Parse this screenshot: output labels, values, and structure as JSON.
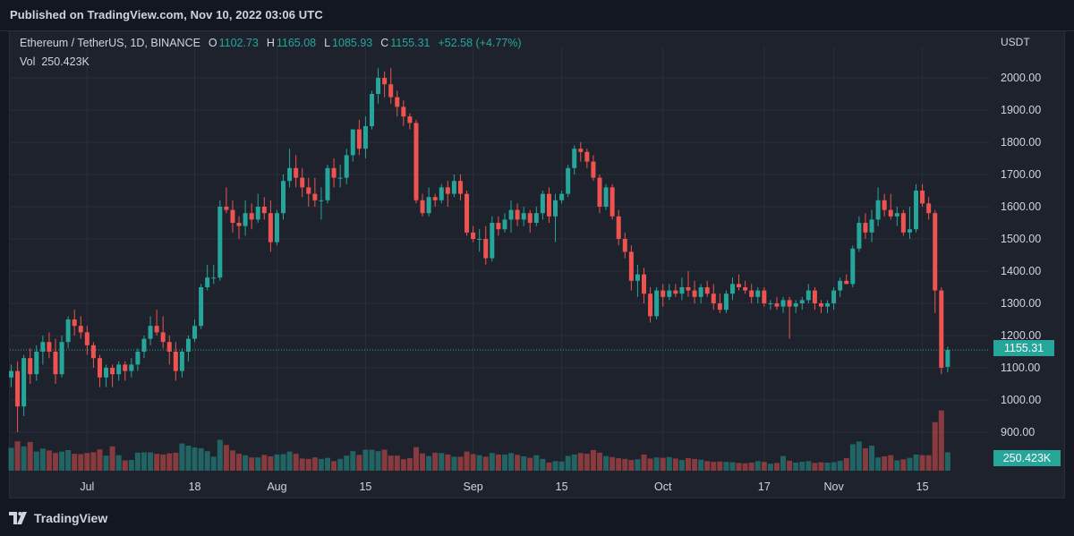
{
  "header": {
    "published": "Published on TradingView.com, Nov 10, 2022 03:06 UTC"
  },
  "legend": {
    "symbol": "Ethereum / TetherUS, 1D, BINANCE",
    "o_label": "O",
    "o_value": "1102.73",
    "h_label": "H",
    "h_value": "1165.08",
    "l_label": "L",
    "l_value": "1085.93",
    "c_label": "C",
    "c_value": "1155.31",
    "change": "+52.58 (+4.77%)",
    "vol_label": "Vol",
    "vol_value": "250.423K"
  },
  "currency": "USDT",
  "badges": {
    "last_price": "1155.31",
    "last_volume": "250.423K"
  },
  "footer": {
    "brand": "TradingView"
  },
  "colors": {
    "up": "#26a69a",
    "down": "#ef5350",
    "up_volume": "#26a69a",
    "down_volume": "#ef5350",
    "background": "#1e222d",
    "grid": "#2a2e39"
  },
  "chart_data": {
    "type": "candlestick",
    "title": "Ethereum / TetherUS, 1D, BINANCE",
    "ylim": [
      870,
      2100
    ],
    "y_ticks": [
      2000,
      1900,
      1800,
      1700,
      1600,
      1500,
      1400,
      1300,
      1200,
      1100,
      1000,
      900
    ],
    "y_tick_labels": [
      "2000.00",
      "1900.00",
      "1800.00",
      "1700.00",
      "1600.00",
      "1500.00",
      "1400.00",
      "1300.00",
      "1200.00",
      "1100.00",
      "1000.00",
      "900.00"
    ],
    "x_ticks": [
      {
        "day": 12,
        "label": "Jul"
      },
      {
        "day": 29,
        "label": "18"
      },
      {
        "day": 42,
        "label": "Aug"
      },
      {
        "day": 56,
        "label": "15"
      },
      {
        "day": 73,
        "label": "Sep"
      },
      {
        "day": 87,
        "label": "15"
      },
      {
        "day": 103,
        "label": "Oct"
      },
      {
        "day": 119,
        "label": "17"
      },
      {
        "day": 130,
        "label": "Nov"
      },
      {
        "day": 144,
        "label": "15"
      }
    ],
    "candles": [
      [
        1070,
        1110,
        1040,
        1090,
        310
      ],
      [
        1090,
        1120,
        900,
        980,
        400
      ],
      [
        980,
        1140,
        950,
        1130,
        330
      ],
      [
        1130,
        1160,
        1050,
        1080,
        390
      ],
      [
        1080,
        1170,
        1060,
        1150,
        260
      ],
      [
        1150,
        1200,
        1110,
        1180,
        300
      ],
      [
        1180,
        1210,
        1130,
        1150,
        275
      ],
      [
        1150,
        1190,
        1050,
        1080,
        240
      ],
      [
        1080,
        1200,
        1070,
        1180,
        260
      ],
      [
        1180,
        1260,
        1160,
        1250,
        280
      ],
      [
        1250,
        1280,
        1200,
        1230,
        230
      ],
      [
        1230,
        1260,
        1190,
        1210,
        225
      ],
      [
        1210,
        1230,
        1140,
        1170,
        240
      ],
      [
        1170,
        1180,
        1100,
        1130,
        250
      ],
      [
        1130,
        1140,
        1040,
        1070,
        290
      ],
      [
        1070,
        1110,
        1040,
        1100,
        205
      ],
      [
        1100,
        1110,
        1040,
        1080,
        330
      ],
      [
        1080,
        1120,
        1060,
        1110,
        210
      ],
      [
        1110,
        1120,
        1060,
        1090,
        140
      ],
      [
        1090,
        1130,
        1070,
        1110,
        145
      ],
      [
        1110,
        1160,
        1090,
        1150,
        245
      ],
      [
        1150,
        1200,
        1130,
        1190,
        250
      ],
      [
        1190,
        1260,
        1170,
        1230,
        250
      ],
      [
        1230,
        1280,
        1200,
        1210,
        230
      ],
      [
        1210,
        1260,
        1160,
        1180,
        220
      ],
      [
        1180,
        1200,
        1110,
        1150,
        235
      ],
      [
        1150,
        1180,
        1060,
        1090,
        245
      ],
      [
        1090,
        1160,
        1070,
        1150,
        370
      ],
      [
        1150,
        1200,
        1120,
        1190,
        340
      ],
      [
        1190,
        1250,
        1180,
        1230,
        315
      ],
      [
        1230,
        1360,
        1220,
        1350,
        305
      ],
      [
        1350,
        1420,
        1340,
        1380,
        265
      ],
      [
        1380,
        1420,
        1360,
        1380,
        190
      ],
      [
        1380,
        1620,
        1370,
        1600,
        420
      ],
      [
        1600,
        1660,
        1580,
        1590,
        350
      ],
      [
        1590,
        1620,
        1520,
        1550,
        275
      ],
      [
        1550,
        1570,
        1500,
        1540,
        230
      ],
      [
        1540,
        1620,
        1510,
        1580,
        210
      ],
      [
        1580,
        1610,
        1530,
        1560,
        180
      ],
      [
        1560,
        1640,
        1550,
        1600,
        180
      ],
      [
        1600,
        1630,
        1560,
        1580,
        215
      ],
      [
        1580,
        1620,
        1460,
        1490,
        195
      ],
      [
        1490,
        1590,
        1480,
        1580,
        220
      ],
      [
        1580,
        1700,
        1560,
        1680,
        225
      ],
      [
        1680,
        1780,
        1660,
        1720,
        260
      ],
      [
        1720,
        1760,
        1660,
        1690,
        230
      ],
      [
        1690,
        1720,
        1630,
        1660,
        165
      ],
      [
        1660,
        1690,
        1600,
        1640,
        160
      ],
      [
        1640,
        1690,
        1600,
        1620,
        180
      ],
      [
        1620,
        1660,
        1560,
        1620,
        160
      ],
      [
        1620,
        1730,
        1610,
        1720,
        175
      ],
      [
        1720,
        1750,
        1660,
        1690,
        130
      ],
      [
        1690,
        1730,
        1660,
        1690,
        160
      ],
      [
        1690,
        1780,
        1670,
        1760,
        205
      ],
      [
        1760,
        1840,
        1740,
        1840,
        265
      ],
      [
        1840,
        1870,
        1760,
        1780,
        215
      ],
      [
        1780,
        1880,
        1750,
        1850,
        285
      ],
      [
        1850,
        1960,
        1840,
        1950,
        285
      ],
      [
        1950,
        2030,
        1920,
        2000,
        265
      ],
      [
        2000,
        2020,
        1940,
        1980,
        285
      ],
      [
        1980,
        2030,
        1920,
        1940,
        205
      ],
      [
        1940,
        1960,
        1880,
        1910,
        205
      ],
      [
        1910,
        1930,
        1850,
        1880,
        155
      ],
      [
        1880,
        1890,
        1840,
        1860,
        170
      ],
      [
        1860,
        1870,
        1610,
        1620,
        320
      ],
      [
        1620,
        1640,
        1570,
        1580,
        235
      ],
      [
        1580,
        1660,
        1570,
        1630,
        200
      ],
      [
        1630,
        1640,
        1600,
        1620,
        245
      ],
      [
        1620,
        1670,
        1610,
        1660,
        240
      ],
      [
        1660,
        1680,
        1600,
        1640,
        220
      ],
      [
        1640,
        1700,
        1630,
        1680,
        190
      ],
      [
        1680,
        1700,
        1620,
        1640,
        190
      ],
      [
        1640,
        1650,
        1510,
        1520,
        260
      ],
      [
        1520,
        1540,
        1490,
        1500,
        225
      ],
      [
        1500,
        1530,
        1460,
        1500,
        210
      ],
      [
        1500,
        1540,
        1420,
        1440,
        190
      ],
      [
        1440,
        1570,
        1430,
        1550,
        240
      ],
      [
        1550,
        1570,
        1510,
        1530,
        220
      ],
      [
        1530,
        1580,
        1520,
        1560,
        220
      ],
      [
        1560,
        1620,
        1520,
        1590,
        240
      ],
      [
        1590,
        1610,
        1540,
        1560,
        215
      ],
      [
        1560,
        1600,
        1540,
        1580,
        195
      ],
      [
        1580,
        1590,
        1520,
        1550,
        175
      ],
      [
        1550,
        1600,
        1540,
        1580,
        210
      ],
      [
        1580,
        1650,
        1560,
        1640,
        160
      ],
      [
        1640,
        1660,
        1550,
        1570,
        110
      ],
      [
        1570,
        1640,
        1490,
        1620,
        130
      ],
      [
        1620,
        1650,
        1610,
        1640,
        125
      ],
      [
        1640,
        1730,
        1630,
        1720,
        200
      ],
      [
        1720,
        1790,
        1700,
        1780,
        220
      ],
      [
        1780,
        1800,
        1740,
        1770,
        240
      ],
      [
        1770,
        1780,
        1720,
        1740,
        230
      ],
      [
        1740,
        1760,
        1680,
        1690,
        280
      ],
      [
        1690,
        1700,
        1580,
        1600,
        245
      ],
      [
        1600,
        1670,
        1590,
        1660,
        200
      ],
      [
        1660,
        1670,
        1560,
        1570,
        185
      ],
      [
        1570,
        1590,
        1480,
        1500,
        170
      ],
      [
        1500,
        1520,
        1440,
        1460,
        160
      ],
      [
        1460,
        1480,
        1340,
        1370,
        145
      ],
      [
        1370,
        1420,
        1320,
        1390,
        155
      ],
      [
        1390,
        1410,
        1300,
        1330,
        220
      ],
      [
        1330,
        1350,
        1240,
        1260,
        165
      ],
      [
        1260,
        1350,
        1250,
        1340,
        180
      ],
      [
        1340,
        1360,
        1290,
        1320,
        175
      ],
      [
        1320,
        1360,
        1310,
        1340,
        185
      ],
      [
        1340,
        1360,
        1320,
        1330,
        165
      ],
      [
        1330,
        1380,
        1310,
        1350,
        145
      ],
      [
        1350,
        1400,
        1320,
        1340,
        170
      ],
      [
        1340,
        1370,
        1300,
        1320,
        160
      ],
      [
        1320,
        1360,
        1300,
        1350,
        150
      ],
      [
        1350,
        1370,
        1320,
        1330,
        130
      ],
      [
        1330,
        1360,
        1280,
        1300,
        120
      ],
      [
        1300,
        1330,
        1270,
        1280,
        125
      ],
      [
        1280,
        1340,
        1270,
        1330,
        120
      ],
      [
        1330,
        1380,
        1310,
        1360,
        115
      ],
      [
        1360,
        1390,
        1340,
        1350,
        105
      ],
      [
        1350,
        1370,
        1330,
        1340,
        100
      ],
      [
        1340,
        1360,
        1300,
        1320,
        110
      ],
      [
        1320,
        1350,
        1300,
        1340,
        130
      ],
      [
        1340,
        1350,
        1290,
        1300,
        120
      ],
      [
        1300,
        1310,
        1280,
        1300,
        95
      ],
      [
        1300,
        1320,
        1280,
        1290,
        105
      ],
      [
        1290,
        1320,
        1270,
        1310,
        200
      ],
      [
        1310,
        1320,
        1190,
        1290,
        135
      ],
      [
        1290,
        1310,
        1270,
        1300,
        110
      ],
      [
        1300,
        1320,
        1280,
        1310,
        120
      ],
      [
        1310,
        1360,
        1300,
        1340,
        130
      ],
      [
        1340,
        1350,
        1280,
        1300,
        105
      ],
      [
        1300,
        1310,
        1270,
        1290,
        115
      ],
      [
        1290,
        1310,
        1270,
        1300,
        110
      ],
      [
        1300,
        1350,
        1280,
        1340,
        115
      ],
      [
        1340,
        1380,
        1320,
        1370,
        135
      ],
      [
        1370,
        1390,
        1360,
        1360,
        170
      ],
      [
        1360,
        1480,
        1350,
        1470,
        360
      ],
      [
        1470,
        1570,
        1460,
        1550,
        395
      ],
      [
        1550,
        1580,
        1500,
        1520,
        305
      ],
      [
        1520,
        1590,
        1490,
        1560,
        340
      ],
      [
        1560,
        1660,
        1540,
        1620,
        180
      ],
      [
        1620,
        1640,
        1570,
        1590,
        195
      ],
      [
        1590,
        1640,
        1560,
        1570,
        210
      ],
      [
        1570,
        1600,
        1540,
        1580,
        140
      ],
      [
        1580,
        1590,
        1510,
        1520,
        155
      ],
      [
        1520,
        1600,
        1500,
        1530,
        175
      ],
      [
        1530,
        1670,
        1520,
        1650,
        220
      ],
      [
        1650,
        1670,
        1600,
        1610,
        210
      ],
      [
        1610,
        1630,
        1560,
        1580,
        210
      ],
      [
        1580,
        1590,
        1270,
        1340,
        660
      ],
      [
        1340,
        1350,
        1080,
        1100,
        820
      ],
      [
        1102.73,
        1165.08,
        1085.93,
        1155.31,
        250.423
      ]
    ]
  }
}
